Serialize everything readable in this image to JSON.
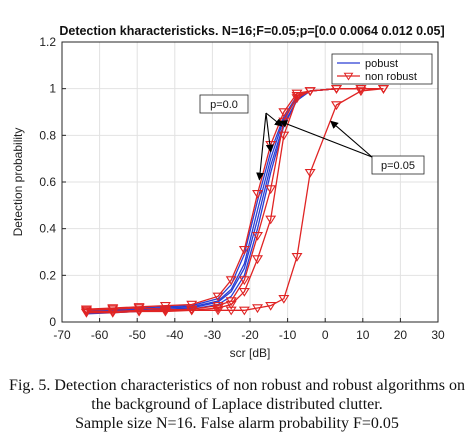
{
  "chart_data": {
    "type": "line",
    "title": "Detection kharacteristicks. N=16;F=0.05;p=[0.0 0.0064 0.012 0.05]",
    "xlabel": "scr [dB]",
    "ylabel": "Detection probability",
    "xlim": [
      -70,
      30
    ],
    "ylim": [
      0,
      1.2
    ],
    "xticks": [
      -70,
      -60,
      -50,
      -40,
      -30,
      -20,
      -10,
      0,
      10,
      20,
      30
    ],
    "yticks": [
      0,
      0.2,
      0.4,
      0.6,
      0.8,
      1,
      1.2
    ],
    "grid": true,
    "legend": {
      "placement": "top-right",
      "entries": [
        {
          "label": "pobust",
          "color": "#2a3fd4",
          "marker": "none"
        },
        {
          "label": "non robust",
          "color": "#e02424",
          "marker": "triangle-down"
        }
      ]
    },
    "x": [
      -63.5,
      -56.5,
      -49.5,
      -42.5,
      -35.5,
      -28.5,
      -25,
      -21.5,
      -18,
      -14.5,
      -11,
      -7.5,
      -4,
      3,
      9.5,
      15.5
    ],
    "series": [
      {
        "group": "pobust",
        "p": "0.0",
        "values": [
          0.05,
          0.055,
          0.06,
          0.065,
          0.07,
          0.1,
          0.16,
          0.29,
          0.52,
          0.73,
          0.88,
          0.97,
          0.99,
          1.0,
          1.0,
          1.0
        ]
      },
      {
        "group": "pobust",
        "p": "0.0064",
        "values": [
          0.04,
          0.05,
          0.05,
          0.055,
          0.06,
          0.085,
          0.13,
          0.23,
          0.44,
          0.67,
          0.85,
          0.95,
          0.99,
          1.0,
          1.0,
          1.0
        ]
      },
      {
        "group": "pobust",
        "p": "0.012",
        "values": [
          0.035,
          0.04,
          0.045,
          0.05,
          0.055,
          0.075,
          0.11,
          0.2,
          0.4,
          0.64,
          0.84,
          0.95,
          0.99,
          1.0,
          1.0,
          1.0
        ]
      },
      {
        "group": "pobust",
        "p": "0.05",
        "values": [
          0.045,
          0.05,
          0.055,
          0.06,
          0.065,
          0.09,
          0.14,
          0.25,
          0.48,
          0.7,
          0.87,
          0.96,
          0.99,
          1.0,
          1.0,
          1.0
        ]
      },
      {
        "group": "non robust",
        "p": "0.0",
        "values": [
          0.055,
          0.06,
          0.065,
          0.07,
          0.075,
          0.11,
          0.18,
          0.31,
          0.55,
          0.76,
          0.9,
          0.98,
          0.99,
          1.0,
          1.0,
          1.0
        ]
      },
      {
        "group": "non robust",
        "p": "0.0064",
        "values": [
          0.045,
          0.045,
          0.05,
          0.05,
          0.055,
          0.07,
          0.09,
          0.18,
          0.37,
          0.57,
          0.86,
          0.97,
          0.99,
          1.0,
          1.0,
          1.0
        ]
      },
      {
        "group": "non robust",
        "p": "0.012",
        "values": [
          0.04,
          0.04,
          0.045,
          0.045,
          0.05,
          0.06,
          0.075,
          0.13,
          0.27,
          0.44,
          0.8,
          0.96,
          0.99,
          1.0,
          1.0,
          1.0
        ]
      },
      {
        "group": "non robust",
        "p": "0.05",
        "values": [
          0.05,
          0.055,
          0.06,
          0.055,
          0.05,
          0.05,
          0.05,
          0.05,
          0.06,
          0.07,
          0.1,
          0.28,
          0.64,
          0.93,
          0.99,
          1.0
        ]
      }
    ],
    "annotations": [
      {
        "text": "p=0.0",
        "arrows_to": [
          [
            -17.5,
            0.61
          ],
          [
            -14.5,
            0.73
          ],
          [
            -11.5,
            0.84
          ]
        ]
      },
      {
        "text": "p=0.05",
        "arrows_to": [
          [
            -12,
            0.86
          ],
          [
            1.5,
            0.86
          ]
        ]
      }
    ]
  },
  "caption": {
    "lines": [
      "Fig. 5. Detection characteristics of non robust and robust algorithms on",
      "the background of Laplace distributed clutter.",
      "Sample size N=16. False alarm probability F=0.05"
    ]
  }
}
